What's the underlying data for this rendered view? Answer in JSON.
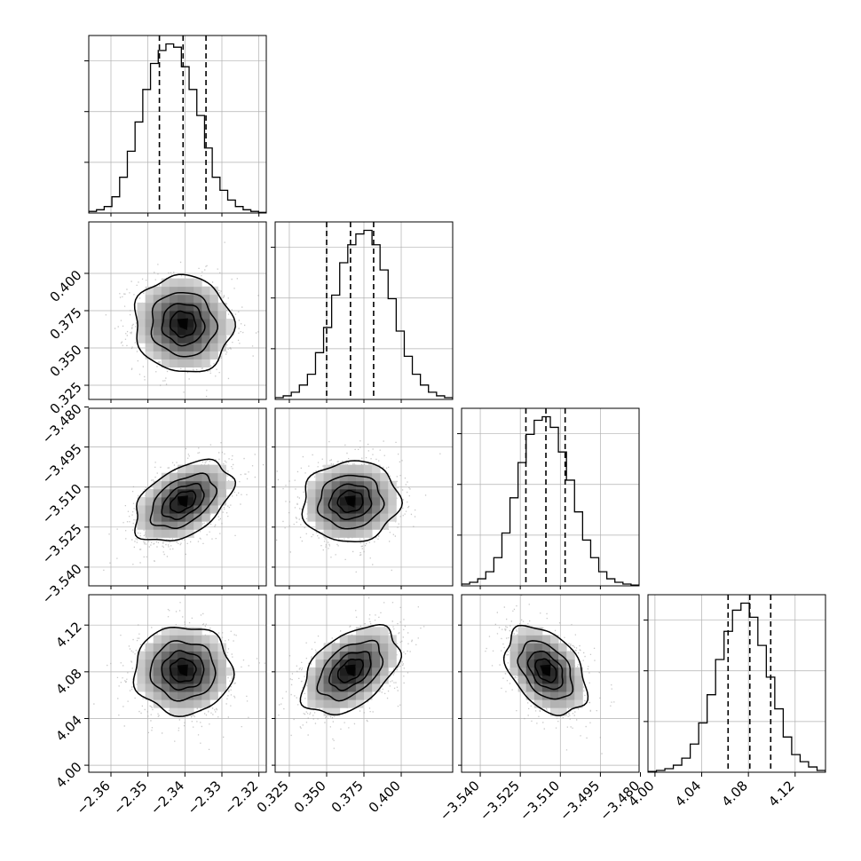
{
  "chart_data": {
    "type": "corner",
    "dimensions": [
      {
        "index": 0,
        "range": [
          -2.366,
          -2.318
        ],
        "ticks": [
          -2.36,
          -2.35,
          -2.34,
          -2.33,
          -2.32
        ],
        "tick_labels": [
          "−2.36",
          "−2.35",
          "−2.34",
          "−2.33",
          "−2.32"
        ],
        "median": -2.3405,
        "q16": -2.3469,
        "q84": -2.3343,
        "sigma": 0.0064
      },
      {
        "index": 1,
        "range": [
          0.3155,
          0.4345
        ],
        "ticks": [
          0.325,
          0.35,
          0.375,
          0.4
        ],
        "tick_labels": [
          "0.325",
          "0.350",
          "0.375",
          "0.400"
        ],
        "median": 0.366,
        "q16": 0.35,
        "q84": 0.3815,
        "sigma": 0.0157
      },
      {
        "index": 2,
        "range": [
          -3.547,
          -3.4805
        ],
        "ticks": [
          -3.54,
          -3.525,
          -3.51,
          -3.495,
          -3.48
        ],
        "tick_labels": [
          "−3.540",
          "−3.525",
          "−3.510",
          "−3.495",
          "−3.480"
        ],
        "median": -3.5154,
        "q16": -3.5229,
        "q84": -3.5082,
        "sigma": 0.0073
      },
      {
        "index": 3,
        "range": [
          3.994,
          4.146
        ],
        "ticks": [
          4.0,
          4.04,
          4.08,
          4.12
        ],
        "tick_labels": [
          "4.00",
          "4.04",
          "4.08",
          "4.12"
        ],
        "median": 4.0812,
        "q16": 4.0626,
        "q84": 4.0991,
        "sigma": 0.0182
      }
    ],
    "diagonal_histograms": [
      {
        "dimension": 0,
        "counts": [
          0.5,
          1,
          2,
          5,
          11,
          19,
          28,
          38,
          46,
          50,
          52,
          51,
          45,
          38,
          30,
          20,
          11,
          7,
          4,
          2,
          1,
          0.5,
          0.2
        ]
      },
      {
        "dimension": 1,
        "counts": [
          0.5,
          1,
          2,
          4,
          7,
          13,
          20,
          29,
          38,
          43,
          46,
          47,
          43,
          36,
          28,
          19,
          12,
          7,
          4,
          2,
          1,
          0.5
        ]
      },
      {
        "dimension": 2,
        "counts": [
          0.5,
          1,
          2,
          4,
          8,
          15,
          25,
          35,
          43,
          47,
          48,
          45,
          38,
          30,
          21,
          13,
          8,
          4,
          2,
          1,
          0.5,
          0.2
        ]
      },
      {
        "dimension": 3,
        "counts": [
          0.2,
          0.5,
          1,
          2,
          4,
          8,
          14,
          22,
          32,
          40,
          46,
          48,
          44,
          36,
          27,
          18,
          10,
          5,
          3,
          1.5,
          0.5
        ]
      }
    ],
    "pair_correlations": [
      {
        "x": 0,
        "y": 1,
        "rho": -0.05
      },
      {
        "x": 0,
        "y": 2,
        "rho": 0.45
      },
      {
        "x": 1,
        "y": 2,
        "rho": 0.05
      },
      {
        "x": 0,
        "y": 3,
        "rho": 0.0
      },
      {
        "x": 1,
        "y": 3,
        "rho": 0.45
      },
      {
        "x": 2,
        "y": 3,
        "rho": -0.4
      }
    ],
    "contour_levels_sigma": [
      0.5,
      1.0,
      1.5,
      2.0
    ],
    "quantile_lines": [
      "q16",
      "median",
      "q84"
    ],
    "grid": true,
    "colors": {
      "contour": "#000000",
      "points": "#9a9a9a",
      "grid": "#b0b0b0",
      "axes": "#000000"
    }
  }
}
